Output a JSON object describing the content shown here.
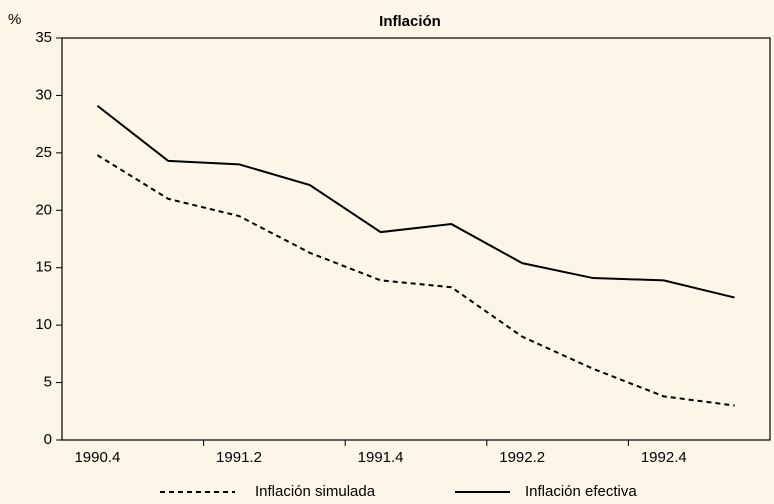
{
  "chart_data": {
    "type": "line",
    "title": "Inflación",
    "y_label": "%",
    "categories": [
      "1990.4",
      null,
      "1991.2",
      null,
      "1991.4",
      null,
      "1992.2",
      null,
      "1992.4",
      null
    ],
    "series": [
      {
        "name": "Inflación simulada",
        "color": "#000000",
        "style": "dashed",
        "values": [
          24.8,
          21.0,
          19.5,
          16.3,
          13.9,
          13.3,
          9.0,
          6.2,
          3.8,
          3.0
        ]
      },
      {
        "name": "Inflación efectiva",
        "color": "#000000",
        "style": "solid",
        "values": [
          29.1,
          24.3,
          24.0,
          22.2,
          18.1,
          18.8,
          15.4,
          14.1,
          13.9,
          12.4
        ]
      }
    ],
    "ylim": [
      0,
      35
    ],
    "yticks": [
      0,
      5,
      10,
      15,
      20,
      25,
      30,
      35
    ],
    "grid": false,
    "legend": "bottom"
  }
}
